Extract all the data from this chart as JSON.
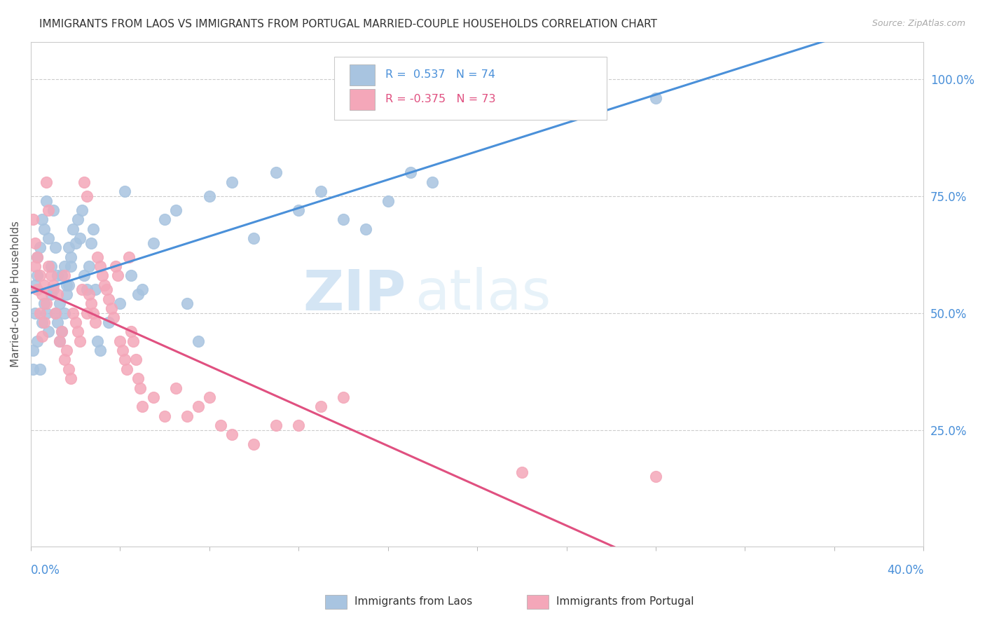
{
  "title": "IMMIGRANTS FROM LAOS VS IMMIGRANTS FROM PORTUGAL MARRIED-COUPLE HOUSEHOLDS CORRELATION CHART",
  "source": "Source: ZipAtlas.com",
  "ylabel": "Married-couple Households",
  "xmin": 0.0,
  "xmax": 0.4,
  "ymin": 0.0,
  "ymax": 1.08,
  "laos_color": "#a8c4e0",
  "portugal_color": "#f4a7b9",
  "laos_line_color": "#4a90d9",
  "portugal_line_color": "#e05080",
  "watermark_zip": "ZIP",
  "watermark_atlas": "atlas",
  "laos_scatter": [
    [
      0.005,
      0.48
    ],
    [
      0.006,
      0.52
    ],
    [
      0.007,
      0.5
    ],
    [
      0.008,
      0.46
    ],
    [
      0.009,
      0.54
    ],
    [
      0.01,
      0.55
    ],
    [
      0.011,
      0.5
    ],
    [
      0.012,
      0.48
    ],
    [
      0.013,
      0.52
    ],
    [
      0.014,
      0.58
    ],
    [
      0.015,
      0.6
    ],
    [
      0.016,
      0.56
    ],
    [
      0.017,
      0.64
    ],
    [
      0.018,
      0.62
    ],
    [
      0.019,
      0.68
    ],
    [
      0.02,
      0.65
    ],
    [
      0.021,
      0.7
    ],
    [
      0.022,
      0.66
    ],
    [
      0.023,
      0.72
    ],
    [
      0.024,
      0.58
    ],
    [
      0.025,
      0.55
    ],
    [
      0.026,
      0.6
    ],
    [
      0.027,
      0.65
    ],
    [
      0.028,
      0.68
    ],
    [
      0.029,
      0.55
    ],
    [
      0.003,
      0.44
    ],
    [
      0.004,
      0.38
    ],
    [
      0.03,
      0.44
    ],
    [
      0.031,
      0.42
    ],
    [
      0.035,
      0.48
    ],
    [
      0.04,
      0.52
    ],
    [
      0.042,
      0.76
    ],
    [
      0.045,
      0.58
    ],
    [
      0.048,
      0.54
    ],
    [
      0.05,
      0.55
    ],
    [
      0.055,
      0.65
    ],
    [
      0.06,
      0.7
    ],
    [
      0.065,
      0.72
    ],
    [
      0.07,
      0.52
    ],
    [
      0.075,
      0.44
    ],
    [
      0.08,
      0.75
    ],
    [
      0.09,
      0.78
    ],
    [
      0.1,
      0.66
    ],
    [
      0.11,
      0.8
    ],
    [
      0.12,
      0.72
    ],
    [
      0.13,
      0.76
    ],
    [
      0.14,
      0.7
    ],
    [
      0.15,
      0.68
    ],
    [
      0.16,
      0.74
    ],
    [
      0.17,
      0.8
    ],
    [
      0.18,
      0.78
    ],
    [
      0.002,
      0.5
    ],
    [
      0.002,
      0.56
    ],
    [
      0.003,
      0.62
    ],
    [
      0.003,
      0.58
    ],
    [
      0.004,
      0.64
    ],
    [
      0.005,
      0.7
    ],
    [
      0.006,
      0.68
    ],
    [
      0.007,
      0.74
    ],
    [
      0.008,
      0.66
    ],
    [
      0.009,
      0.6
    ],
    [
      0.01,
      0.72
    ],
    [
      0.011,
      0.64
    ],
    [
      0.012,
      0.58
    ],
    [
      0.013,
      0.44
    ],
    [
      0.014,
      0.46
    ],
    [
      0.015,
      0.5
    ],
    [
      0.016,
      0.54
    ],
    [
      0.017,
      0.56
    ],
    [
      0.018,
      0.6
    ],
    [
      0.2,
      1.0
    ],
    [
      0.28,
      0.96
    ],
    [
      0.001,
      0.42
    ],
    [
      0.001,
      0.38
    ]
  ],
  "portugal_scatter": [
    [
      0.003,
      0.55
    ],
    [
      0.004,
      0.5
    ],
    [
      0.005,
      0.45
    ],
    [
      0.006,
      0.48
    ],
    [
      0.007,
      0.52
    ],
    [
      0.008,
      0.6
    ],
    [
      0.009,
      0.58
    ],
    [
      0.01,
      0.56
    ],
    [
      0.011,
      0.5
    ],
    [
      0.012,
      0.54
    ],
    [
      0.013,
      0.44
    ],
    [
      0.014,
      0.46
    ],
    [
      0.015,
      0.4
    ],
    [
      0.016,
      0.42
    ],
    [
      0.017,
      0.38
    ],
    [
      0.018,
      0.36
    ],
    [
      0.019,
      0.5
    ],
    [
      0.02,
      0.48
    ],
    [
      0.021,
      0.46
    ],
    [
      0.022,
      0.44
    ],
    [
      0.023,
      0.55
    ],
    [
      0.024,
      0.78
    ],
    [
      0.025,
      0.75
    ],
    [
      0.026,
      0.54
    ],
    [
      0.027,
      0.52
    ],
    [
      0.028,
      0.5
    ],
    [
      0.029,
      0.48
    ],
    [
      0.03,
      0.62
    ],
    [
      0.031,
      0.6
    ],
    [
      0.032,
      0.58
    ],
    [
      0.033,
      0.56
    ],
    [
      0.034,
      0.55
    ],
    [
      0.035,
      0.53
    ],
    [
      0.036,
      0.51
    ],
    [
      0.037,
      0.49
    ],
    [
      0.038,
      0.6
    ],
    [
      0.039,
      0.58
    ],
    [
      0.04,
      0.44
    ],
    [
      0.041,
      0.42
    ],
    [
      0.042,
      0.4
    ],
    [
      0.043,
      0.38
    ],
    [
      0.044,
      0.62
    ],
    [
      0.045,
      0.46
    ],
    [
      0.046,
      0.44
    ],
    [
      0.047,
      0.4
    ],
    [
      0.048,
      0.36
    ],
    [
      0.049,
      0.34
    ],
    [
      0.05,
      0.3
    ],
    [
      0.055,
      0.32
    ],
    [
      0.06,
      0.28
    ],
    [
      0.065,
      0.34
    ],
    [
      0.07,
      0.28
    ],
    [
      0.075,
      0.3
    ],
    [
      0.08,
      0.32
    ],
    [
      0.085,
      0.26
    ],
    [
      0.09,
      0.24
    ],
    [
      0.1,
      0.22
    ],
    [
      0.11,
      0.26
    ],
    [
      0.12,
      0.26
    ],
    [
      0.13,
      0.3
    ],
    [
      0.14,
      0.32
    ],
    [
      0.001,
      0.7
    ],
    [
      0.002,
      0.65
    ],
    [
      0.002,
      0.6
    ],
    [
      0.003,
      0.62
    ],
    [
      0.004,
      0.58
    ],
    [
      0.005,
      0.54
    ],
    [
      0.006,
      0.56
    ],
    [
      0.007,
      0.78
    ],
    [
      0.008,
      0.72
    ],
    [
      0.015,
      0.58
    ],
    [
      0.025,
      0.5
    ],
    [
      0.22,
      0.16
    ],
    [
      0.28,
      0.15
    ]
  ]
}
